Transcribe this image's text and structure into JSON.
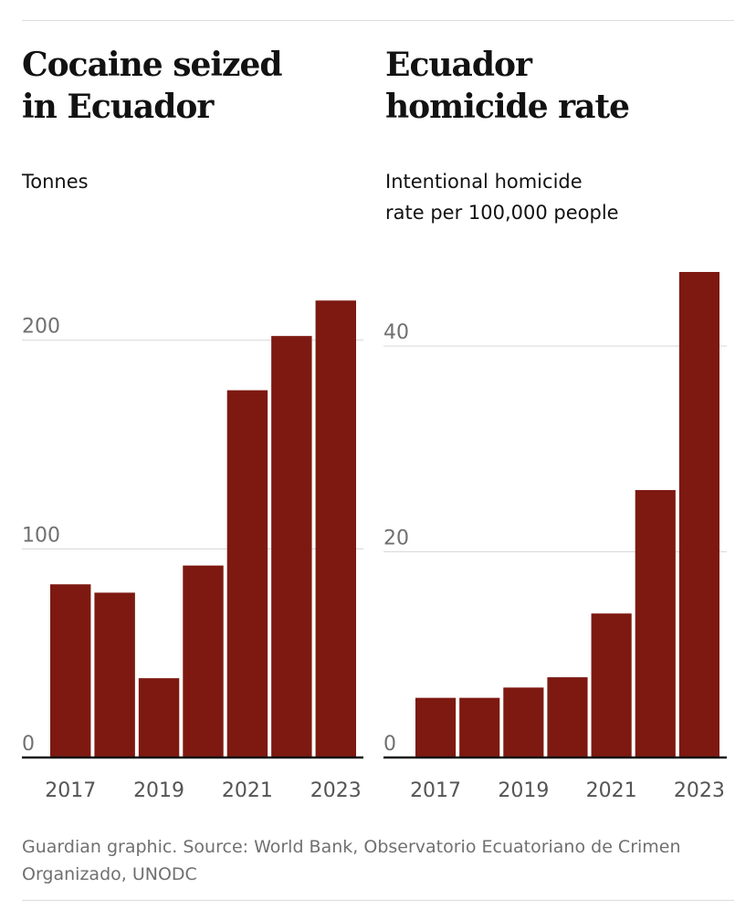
{
  "chart_data": [
    {
      "type": "bar",
      "title": "Cocaine seized\nin Ecuador",
      "subtitle": "Tonnes",
      "x": [
        2017,
        2018,
        2019,
        2020,
        2021,
        2022,
        2023
      ],
      "x_tick_labels": [
        "2017",
        "2019",
        "2021",
        "2023"
      ],
      "x_tick_values": [
        2017,
        2019,
        2021,
        2023
      ],
      "values": [
        83,
        79,
        38,
        92,
        176,
        202,
        219
      ],
      "y_ticks": [
        0,
        100,
        200
      ],
      "ylim": [
        0,
        220
      ],
      "color": "#7d1911",
      "grid": true
    },
    {
      "type": "bar",
      "title": "Ecuador\nhomicide rate",
      "subtitle": "Intentional homicide\nrate per 100,000 people",
      "x": [
        2017,
        2018,
        2019,
        2020,
        2021,
        2022,
        2023
      ],
      "x_tick_labels": [
        "2017",
        "2019",
        "2021",
        "2023"
      ],
      "x_tick_values": [
        2017,
        2019,
        2021,
        2023
      ],
      "values": [
        5.8,
        5.8,
        6.8,
        7.8,
        14.0,
        26.0,
        47.2
      ],
      "y_ticks": [
        0,
        20,
        40
      ],
      "ylim": [
        0,
        48
      ],
      "color": "#7d1911",
      "grid": true
    }
  ],
  "source": "Guardian graphic. Source: World Bank, Observatorio Ecuatoriano de Crimen Organizado, UNODC"
}
